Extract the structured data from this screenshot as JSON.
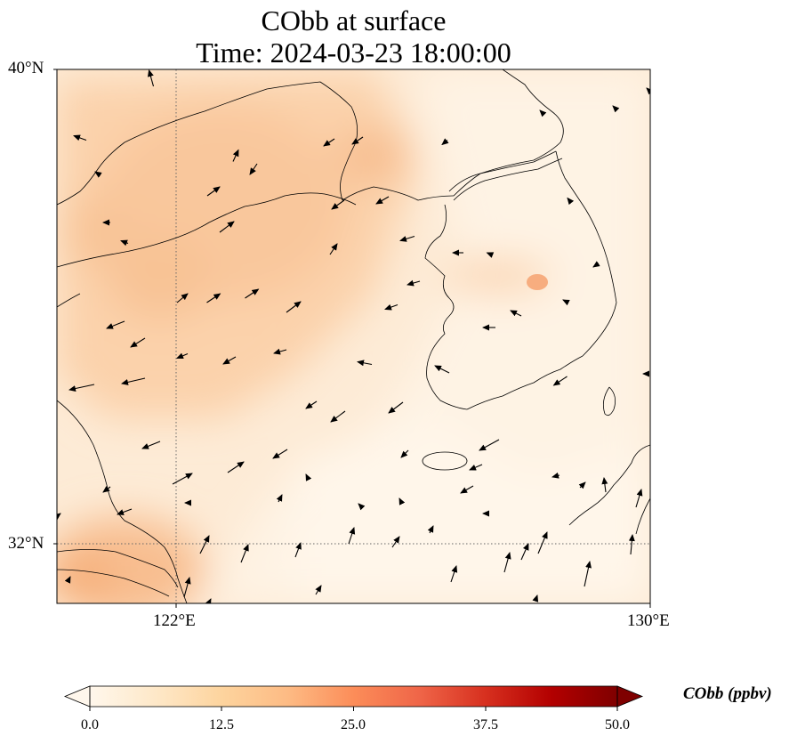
{
  "title": {
    "line1": "CObb at surface",
    "line2": "Time: 2024-03-23 18:00:00"
  },
  "map": {
    "lon_range": [
      120,
      130
    ],
    "lat_range": [
      31,
      40
    ],
    "lat_ticks": [
      {
        "value": 40,
        "label": "40°N"
      },
      {
        "value": 32,
        "label": "32°N"
      }
    ],
    "lon_ticks": [
      {
        "value": 122,
        "label": "122°E"
      },
      {
        "value": 130,
        "label": "130°E"
      }
    ],
    "gridlines": "dotted"
  },
  "colorbar": {
    "label": "CObb (ppbv)",
    "min": 0,
    "max": 50,
    "tick_labels": [
      "0.0",
      "12.5",
      "25.0",
      "37.5",
      "50.0"
    ],
    "colormap": "OrRd",
    "extend": "both",
    "colors": [
      "#fff7ec",
      "#fee8c8",
      "#fdd49e",
      "#fdbb84",
      "#fc8d59",
      "#ef6548",
      "#d7301f",
      "#b30000",
      "#7f0000"
    ]
  }
}
